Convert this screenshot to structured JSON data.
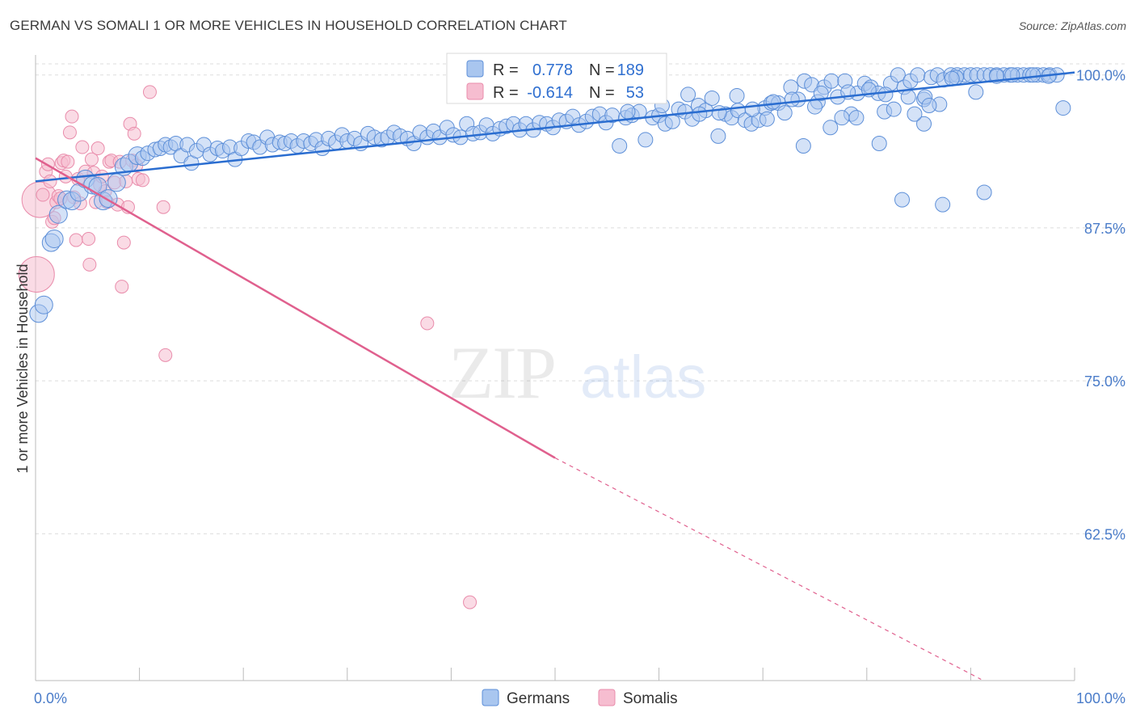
{
  "header": {
    "title": "GERMAN VS SOMALI 1 OR MORE VEHICLES IN HOUSEHOLD CORRELATION CHART",
    "source": "Source: ZipAtlas.com"
  },
  "colors": {
    "german_fill": "#a9c6ef",
    "german_stroke": "#5d8fd8",
    "german_line": "#2a6dd0",
    "somali_fill": "#f6bdd0",
    "somali_stroke": "#e98cab",
    "somali_line": "#e0608e",
    "tick_text": "#4a7cc9",
    "grid": "#dddddd"
  },
  "chart_data": {
    "type": "scatter",
    "title": "GERMAN VS SOMALI 1 OR MORE VEHICLES IN HOUSEHOLD CORRELATION CHART",
    "xlabel": "",
    "ylabel": "1 or more Vehicles in Household",
    "xlim": [
      0,
      100
    ],
    "ylim": [
      50.5,
      101.5
    ],
    "x_tick_labels": [
      "0.0%",
      "100.0%"
    ],
    "y_ticks": [
      100.0,
      87.5,
      75.0,
      62.5
    ],
    "y_tick_labels": [
      "100.0%",
      "87.5%",
      "75.0%",
      "62.5%"
    ],
    "grid": true,
    "watermark": "ZIPatlas",
    "legend": {
      "position": "top-center",
      "entries": [
        {
          "series": "Germans",
          "r_label": "R =",
          "r_value": "0.778",
          "n_label": "N =",
          "n_value": "189"
        },
        {
          "series": "Somalis",
          "r_label": "R =",
          "r_value": "-0.614",
          "n_label": "N =",
          "n_value": "53"
        }
      ]
    },
    "bottom_legend": [
      "Germans",
      "Somalis"
    ],
    "series": [
      {
        "name": "Germans",
        "trendline": {
          "x": [
            0,
            100
          ],
          "y": [
            91.3,
            100.2
          ]
        },
        "points": [
          [
            0.3,
            80.5
          ],
          [
            0.8,
            81.2
          ],
          [
            1.5,
            86.3
          ],
          [
            1.8,
            86.6
          ],
          [
            2.2,
            88.6
          ],
          [
            3.0,
            89.8
          ],
          [
            3.5,
            89.7
          ],
          [
            4.2,
            90.4
          ],
          [
            4.8,
            91.5
          ],
          [
            5.5,
            91.0
          ],
          [
            6.0,
            90.9
          ],
          [
            6.5,
            89.7
          ],
          [
            7.0,
            89.9
          ],
          [
            7.8,
            91.2
          ],
          [
            8.5,
            92.5
          ],
          [
            9.0,
            92.8
          ],
          [
            9.8,
            93.4
          ],
          [
            10.3,
            93.2
          ],
          [
            10.8,
            93.6
          ],
          [
            11.5,
            93.9
          ],
          [
            12.0,
            94.0
          ],
          [
            12.5,
            94.3
          ],
          [
            13.0,
            94.1
          ],
          [
            13.5,
            94.4
          ],
          [
            14.0,
            93.4
          ],
          [
            14.6,
            94.3
          ],
          [
            15.0,
            92.8
          ],
          [
            15.5,
            93.8
          ],
          [
            16.2,
            94.3
          ],
          [
            16.8,
            93.5
          ],
          [
            17.5,
            94.0
          ],
          [
            18.0,
            93.8
          ],
          [
            18.7,
            94.1
          ],
          [
            19.2,
            93.1
          ],
          [
            19.8,
            94.0
          ],
          [
            20.5,
            94.6
          ],
          [
            21.0,
            94.5
          ],
          [
            21.6,
            94.1
          ],
          [
            22.3,
            94.9
          ],
          [
            22.8,
            94.3
          ],
          [
            23.5,
            94.5
          ],
          [
            24.0,
            94.4
          ],
          [
            24.6,
            94.6
          ],
          [
            25.2,
            94.2
          ],
          [
            25.8,
            94.6
          ],
          [
            26.5,
            94.4
          ],
          [
            27.0,
            94.7
          ],
          [
            27.6,
            94.0
          ],
          [
            28.2,
            94.8
          ],
          [
            28.9,
            94.5
          ],
          [
            29.5,
            95.1
          ],
          [
            30.0,
            94.6
          ],
          [
            30.7,
            94.8
          ],
          [
            31.3,
            94.4
          ],
          [
            32.0,
            95.2
          ],
          [
            32.6,
            94.9
          ],
          [
            33.3,
            94.7
          ],
          [
            33.9,
            94.9
          ],
          [
            34.5,
            95.3
          ],
          [
            35.1,
            95.0
          ],
          [
            35.8,
            94.8
          ],
          [
            36.4,
            94.4
          ],
          [
            37.0,
            95.3
          ],
          [
            37.7,
            94.9
          ],
          [
            38.3,
            95.4
          ],
          [
            38.9,
            94.9
          ],
          [
            39.6,
            95.7
          ],
          [
            40.2,
            95.1
          ],
          [
            40.9,
            94.9
          ],
          [
            41.5,
            96.0
          ],
          [
            42.1,
            95.2
          ],
          [
            42.8,
            95.3
          ],
          [
            43.4,
            95.9
          ],
          [
            44.0,
            95.2
          ],
          [
            44.7,
            95.6
          ],
          [
            45.3,
            95.8
          ],
          [
            46.0,
            96.0
          ],
          [
            46.6,
            95.5
          ],
          [
            47.2,
            96.0
          ],
          [
            47.9,
            95.5
          ],
          [
            48.5,
            96.1
          ],
          [
            49.2,
            96.0
          ],
          [
            49.8,
            95.7
          ],
          [
            50.4,
            96.3
          ],
          [
            51.1,
            96.2
          ],
          [
            51.7,
            96.6
          ],
          [
            52.3,
            95.9
          ],
          [
            53.0,
            96.2
          ],
          [
            53.6,
            96.6
          ],
          [
            54.3,
            96.8
          ],
          [
            54.9,
            96.1
          ],
          [
            55.5,
            96.7
          ],
          [
            56.2,
            94.2
          ],
          [
            56.8,
            96.5
          ],
          [
            57.4,
            96.7
          ],
          [
            58.1,
            97.0
          ],
          [
            58.7,
            94.7
          ],
          [
            59.4,
            96.5
          ],
          [
            60.0,
            96.7
          ],
          [
            60.6,
            96.0
          ],
          [
            61.3,
            96.2
          ],
          [
            61.9,
            97.2
          ],
          [
            62.5,
            97.0
          ],
          [
            63.2,
            96.4
          ],
          [
            63.8,
            97.5
          ],
          [
            64.5,
            97.1
          ],
          [
            65.1,
            98.1
          ],
          [
            65.7,
            95.0
          ],
          [
            66.4,
            96.8
          ],
          [
            67.0,
            96.5
          ],
          [
            67.6,
            97.1
          ],
          [
            68.3,
            96.3
          ],
          [
            68.9,
            96.0
          ],
          [
            69.6,
            96.3
          ],
          [
            70.2,
            97.3
          ],
          [
            70.8,
            97.7
          ],
          [
            71.5,
            97.7
          ],
          [
            72.1,
            96.9
          ],
          [
            72.7,
            99.0
          ],
          [
            73.4,
            98.0
          ],
          [
            74.0,
            99.5
          ],
          [
            74.7,
            99.2
          ],
          [
            75.3,
            97.8
          ],
          [
            75.9,
            99.0
          ],
          [
            76.6,
            99.5
          ],
          [
            77.2,
            98.2
          ],
          [
            77.9,
            99.5
          ],
          [
            78.5,
            96.8
          ],
          [
            79.1,
            98.5
          ],
          [
            79.8,
            99.3
          ],
          [
            80.4,
            99.0
          ],
          [
            81.1,
            98.5
          ],
          [
            81.7,
            97.0
          ],
          [
            82.3,
            99.3
          ],
          [
            83.0,
            100.0
          ],
          [
            83.6,
            99.0
          ],
          [
            84.2,
            99.5
          ],
          [
            84.9,
            100.0
          ],
          [
            85.5,
            98.0
          ],
          [
            86.2,
            99.8
          ],
          [
            86.8,
            100.0
          ],
          [
            87.4,
            99.6
          ],
          [
            88.1,
            100.0
          ],
          [
            88.7,
            100.0
          ],
          [
            89.4,
            100.0
          ],
          [
            90.0,
            100.0
          ],
          [
            90.6,
            100.0
          ],
          [
            91.3,
            100.0
          ],
          [
            91.9,
            100.0
          ],
          [
            92.5,
            100.0
          ],
          [
            93.2,
            100.0
          ],
          [
            93.8,
            100.0
          ],
          [
            94.5,
            100.0
          ],
          [
            95.1,
            100.0
          ],
          [
            95.7,
            100.0
          ],
          [
            96.4,
            100.0
          ],
          [
            97.0,
            100.0
          ],
          [
            97.6,
            100.0
          ],
          [
            98.3,
            100.0
          ],
          [
            98.9,
            97.3
          ],
          [
            53.7,
            98.5
          ],
          [
            57.0,
            97.0
          ],
          [
            62.8,
            98.4
          ],
          [
            69.0,
            97.2
          ],
          [
            72.8,
            98.0
          ],
          [
            75.0,
            97.4
          ],
          [
            76.5,
            95.7
          ],
          [
            79.0,
            96.5
          ],
          [
            81.2,
            94.4
          ],
          [
            82.6,
            97.2
          ],
          [
            84.0,
            98.2
          ],
          [
            85.5,
            96.0
          ],
          [
            87.0,
            97.6
          ],
          [
            88.6,
            99.8
          ],
          [
            90.5,
            98.6
          ],
          [
            92.5,
            99.9
          ],
          [
            94.0,
            100.0
          ],
          [
            96.0,
            100.0
          ],
          [
            97.5,
            99.9
          ],
          [
            67.5,
            98.3
          ],
          [
            71.0,
            97.8
          ],
          [
            73.9,
            94.2
          ],
          [
            77.6,
            96.5
          ],
          [
            80.2,
            98.8
          ],
          [
            83.4,
            89.8
          ],
          [
            84.6,
            96.8
          ],
          [
            85.6,
            98.2
          ],
          [
            87.3,
            89.4
          ],
          [
            91.3,
            90.4
          ],
          [
            63.9,
            96.8
          ],
          [
            58.0,
            98.7
          ],
          [
            60.3,
            97.5
          ],
          [
            65.8,
            96.9
          ],
          [
            70.4,
            96.4
          ],
          [
            75.6,
            98.5
          ],
          [
            78.2,
            98.6
          ],
          [
            81.8,
            98.4
          ],
          [
            86.0,
            97.5
          ],
          [
            88.2,
            99.7
          ]
        ]
      },
      {
        "name": "Somalis",
        "trendline": {
          "x": [
            0,
            50
          ],
          "y": [
            93.2,
            68.7
          ]
        },
        "trendline_dashed": {
          "x": [
            50,
            91
          ],
          "y": [
            68.7,
            50.6
          ]
        },
        "points": [
          [
            0.1,
            83.7
          ],
          [
            0.4,
            89.8
          ],
          [
            0.7,
            90.2
          ],
          [
            1.0,
            92.1
          ],
          [
            1.2,
            92.7
          ],
          [
            1.4,
            91.3
          ],
          [
            1.6,
            88.0
          ],
          [
            1.8,
            88.3
          ],
          [
            2.0,
            89.6
          ],
          [
            2.2,
            90.1
          ],
          [
            2.4,
            89.9
          ],
          [
            2.5,
            92.8
          ],
          [
            2.7,
            93.0
          ],
          [
            2.9,
            91.7
          ],
          [
            3.1,
            92.9
          ],
          [
            3.3,
            95.3
          ],
          [
            3.5,
            96.6
          ],
          [
            3.7,
            90.0
          ],
          [
            3.9,
            86.5
          ],
          [
            4.1,
            91.5
          ],
          [
            4.3,
            89.5
          ],
          [
            4.5,
            94.1
          ],
          [
            4.8,
            92.1
          ],
          [
            5.1,
            86.6
          ],
          [
            5.2,
            84.5
          ],
          [
            5.4,
            93.1
          ],
          [
            5.6,
            92.0
          ],
          [
            5.8,
            89.6
          ],
          [
            6.0,
            94.0
          ],
          [
            6.2,
            91.0
          ],
          [
            6.4,
            91.7
          ],
          [
            6.7,
            90.5
          ],
          [
            6.9,
            89.6
          ],
          [
            7.1,
            92.9
          ],
          [
            7.3,
            93.0
          ],
          [
            7.6,
            91.2
          ],
          [
            7.9,
            89.4
          ],
          [
            8.1,
            92.9
          ],
          [
            8.3,
            82.7
          ],
          [
            8.5,
            86.3
          ],
          [
            8.7,
            91.3
          ],
          [
            8.9,
            89.2
          ],
          [
            9.1,
            96.0
          ],
          [
            9.3,
            93.0
          ],
          [
            9.5,
            95.2
          ],
          [
            9.7,
            92.6
          ],
          [
            9.9,
            91.5
          ],
          [
            10.3,
            91.4
          ],
          [
            11.0,
            98.6
          ],
          [
            12.3,
            89.2
          ],
          [
            12.5,
            77.1
          ],
          [
            37.7,
            79.7
          ],
          [
            41.8,
            56.9
          ]
        ]
      }
    ]
  }
}
